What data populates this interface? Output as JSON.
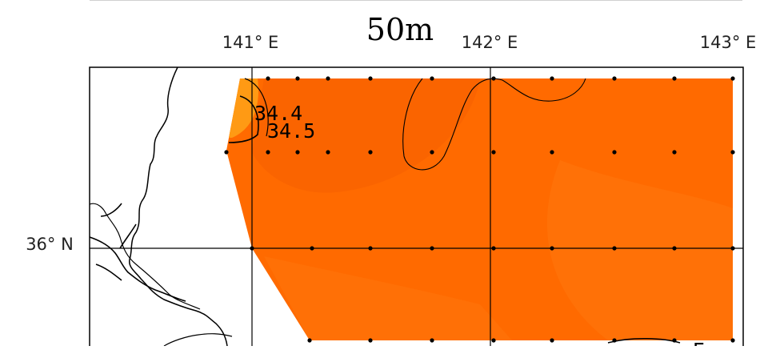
{
  "depth_title": "50m",
  "longitude_labels": [
    "141° E",
    "142° E",
    "143° E"
  ],
  "latitude_labels": [
    "36° N"
  ],
  "contour_labels": [
    "34.4",
    "34.5"
  ],
  "colors": {
    "field_main": "#FF6A00",
    "field_light": "#FF7A0F",
    "field_dark": "#F55F00",
    "field_nearshore": "#FF9A14",
    "coastline": "#000000",
    "grid": "#000000",
    "background": "#FFFFFF"
  }
}
